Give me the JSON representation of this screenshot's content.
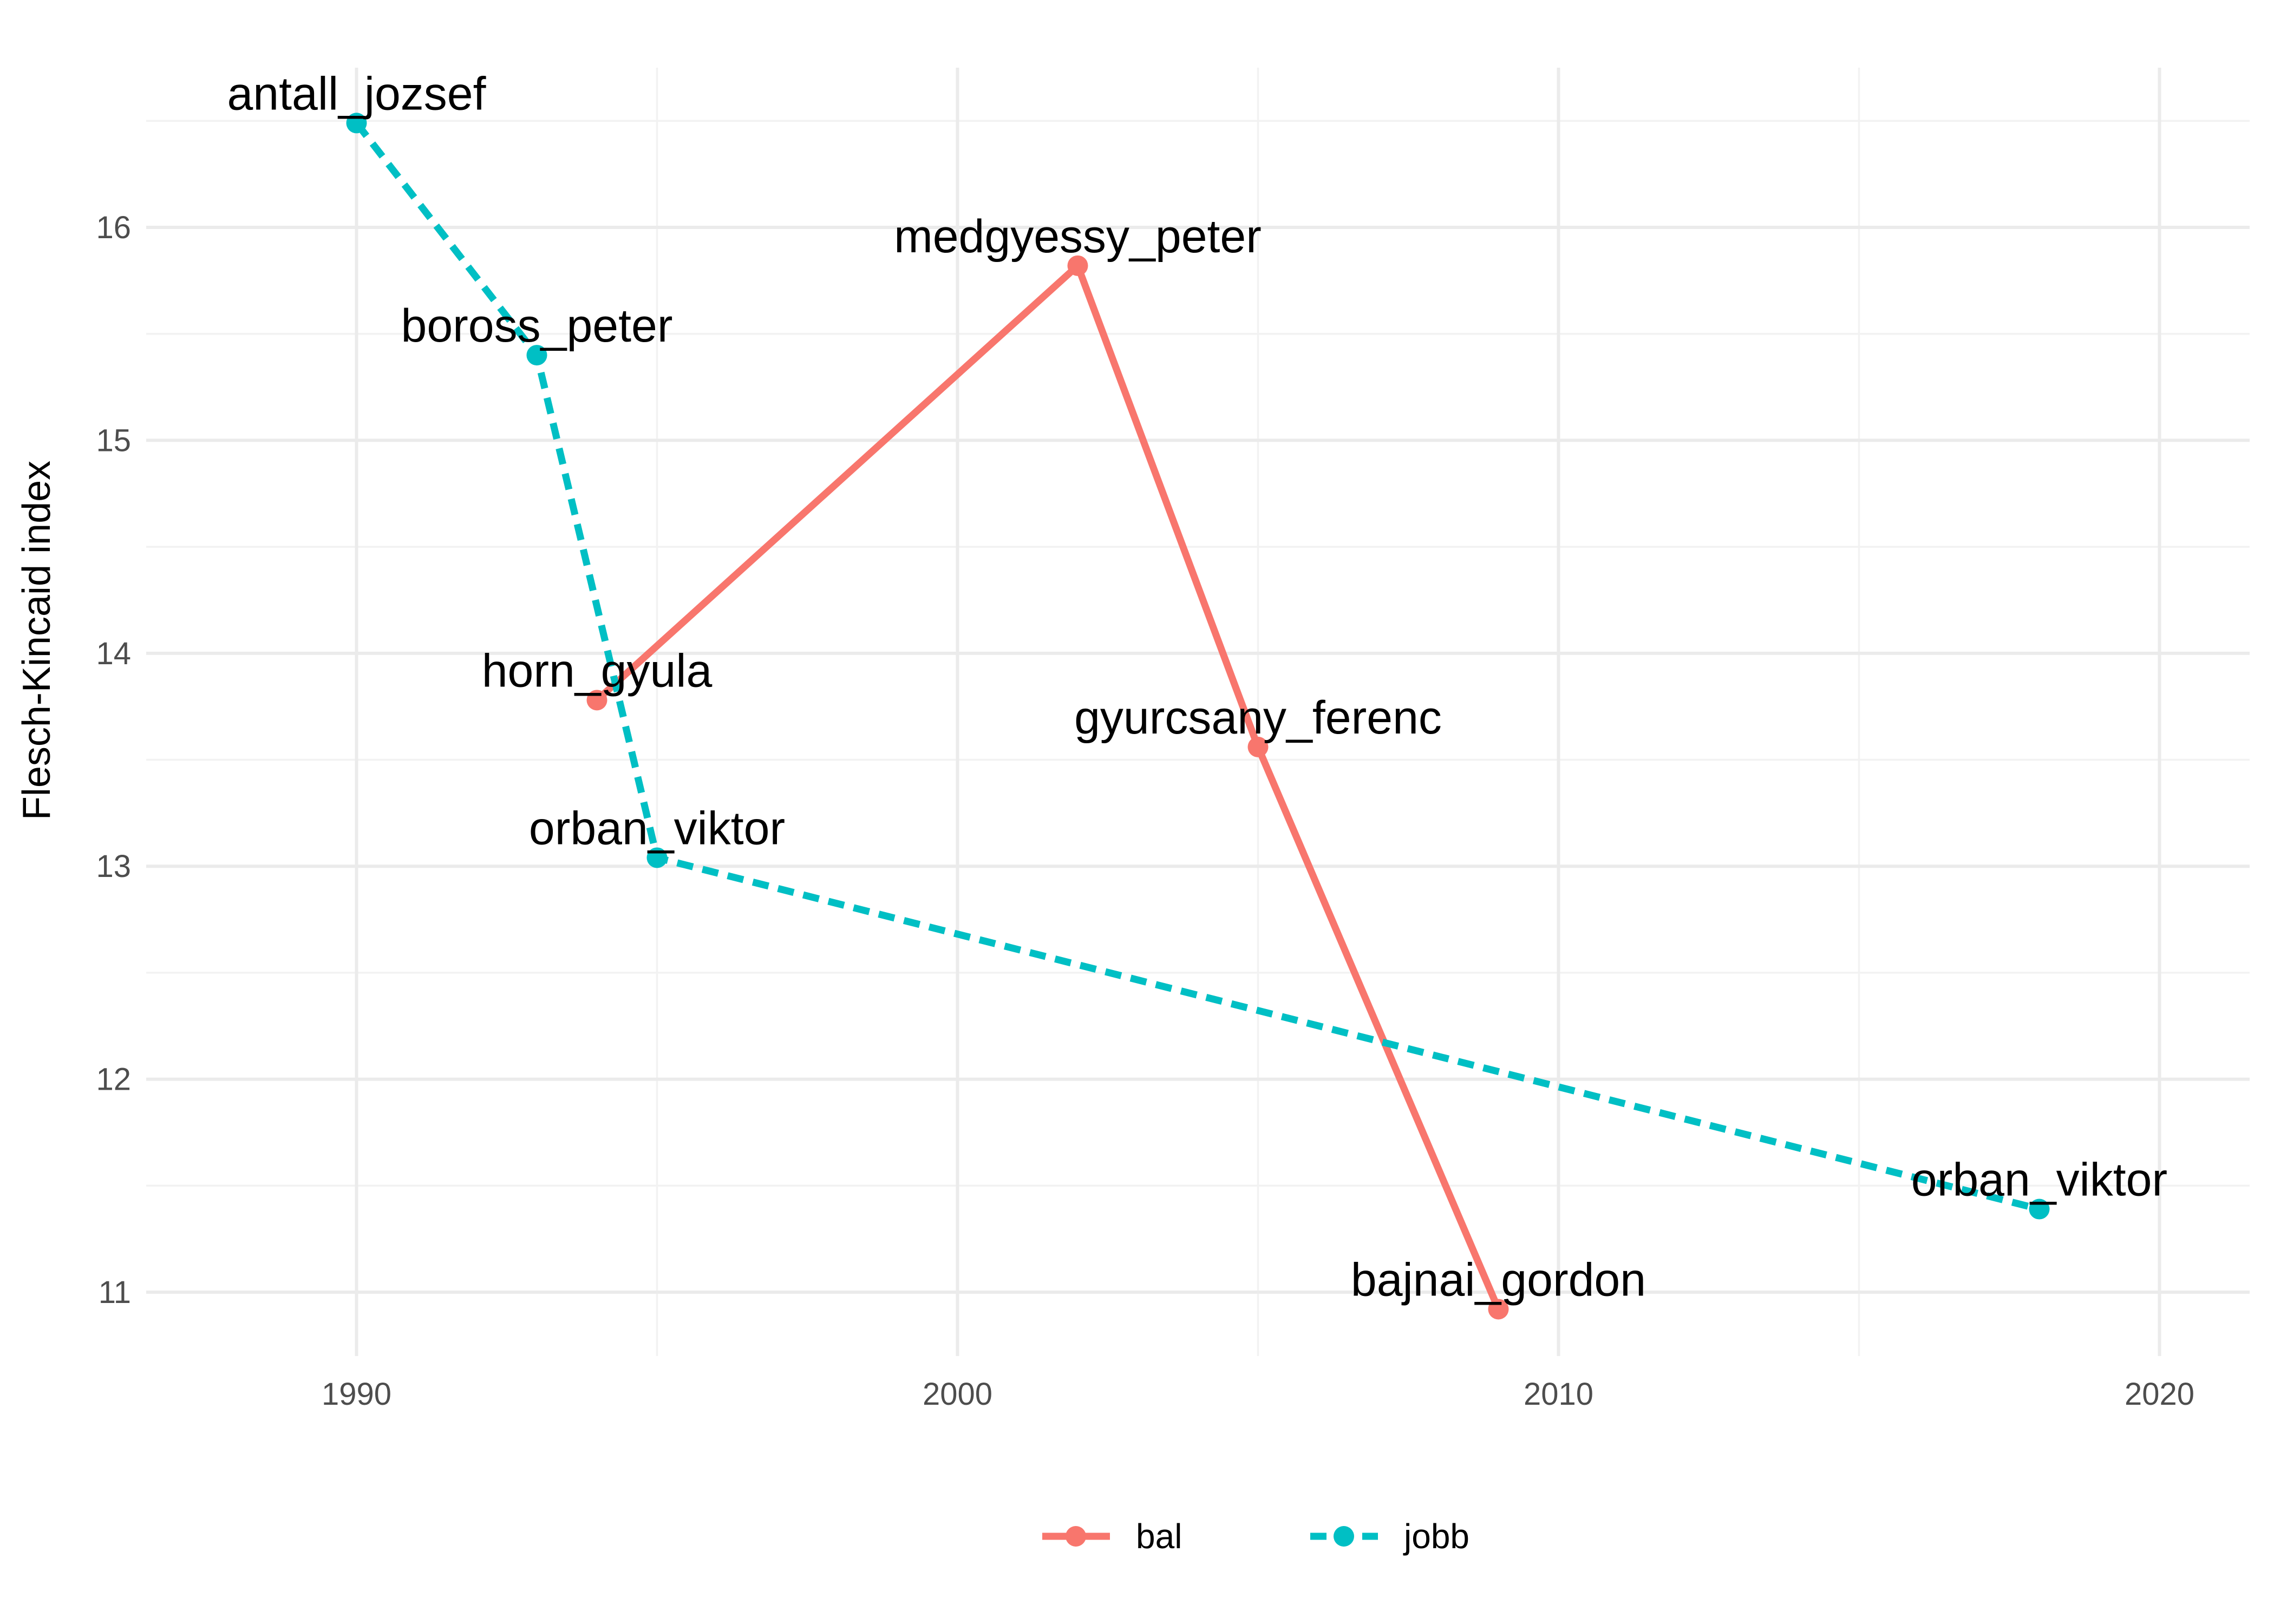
{
  "chart_data": {
    "type": "line",
    "title": "",
    "xlabel": "",
    "ylabel": "Flesch-Kincaid index",
    "xlim": [
      1986.5,
      2021.5
    ],
    "ylim": [
      10.7,
      16.75
    ],
    "x_ticks": [
      1990,
      2000,
      2010,
      2020
    ],
    "y_ticks": [
      11,
      12,
      13,
      14,
      15,
      16
    ],
    "grid": true,
    "legend_position": "bottom",
    "series": [
      {
        "name": "bal",
        "color": "#F8766D",
        "line_style": "solid",
        "points": [
          {
            "x": 1994,
            "y": 13.78,
            "label": "horn_gyula"
          },
          {
            "x": 2002,
            "y": 15.82,
            "label": "medgyessy_peter"
          },
          {
            "x": 2005,
            "y": 13.56,
            "label": "gyurcsany_ferenc"
          },
          {
            "x": 2009,
            "y": 10.92,
            "label": "bajnai_gordon"
          }
        ]
      },
      {
        "name": "jobb",
        "color": "#00BFC4",
        "line_style": "dashed",
        "points": [
          {
            "x": 1990,
            "y": 16.49,
            "label": "antall_jozsef"
          },
          {
            "x": 1993,
            "y": 15.4,
            "label": "boross_peter"
          },
          {
            "x": 1995,
            "y": 13.04,
            "label": "orban_viktor"
          },
          {
            "x": 2018,
            "y": 11.39,
            "label": "orban_viktor"
          }
        ]
      }
    ]
  }
}
